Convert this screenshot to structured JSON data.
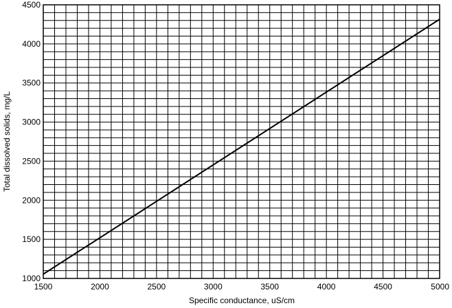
{
  "chart_data": {
    "type": "line",
    "x_label": "Specific conductance, uS/cm",
    "y_label": "Total dissolved solids, mg/L",
    "series": [
      {
        "color": "#000000",
        "x": [
          1500,
          5000
        ],
        "values": [
          1055,
          4315
        ]
      }
    ],
    "xlim": [
      1500,
      5000
    ],
    "xticks": [
      1500,
      2000,
      2500,
      3000,
      3500,
      4000,
      4500,
      5000
    ],
    "ylim": [
      1000,
      4500
    ],
    "yticks": [
      1000,
      1500,
      2000,
      2500,
      3000,
      3500,
      4000,
      4500
    ],
    "grid": true
  }
}
